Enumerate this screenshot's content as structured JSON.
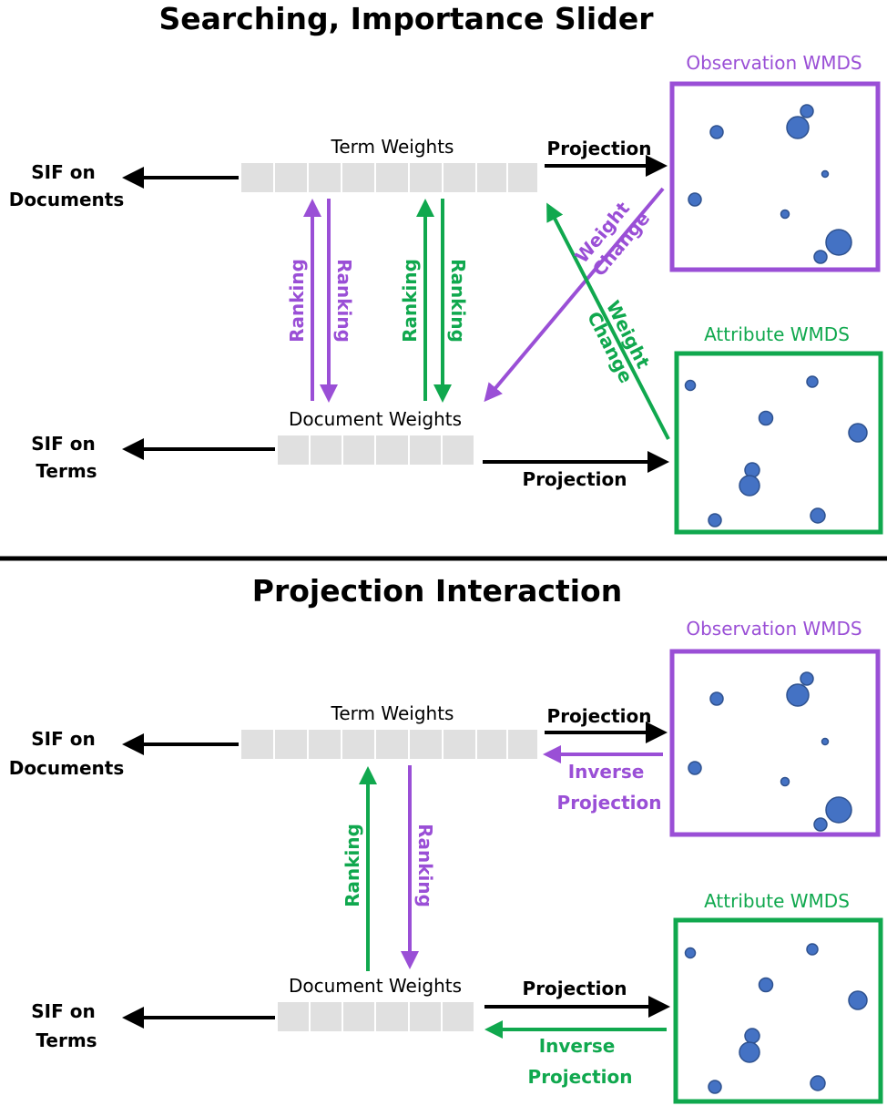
{
  "colors": {
    "purple": "#9a4fd6",
    "green": "#10a84e",
    "black": "#000000",
    "cell": "#e0e0e0",
    "dot": "#4472c4"
  },
  "top": {
    "title": "Searching, Importance Slider",
    "term_weights": "Term Weights",
    "document_weights": "Document Weights",
    "sif_documents": [
      "SIF on",
      "Documents"
    ],
    "sif_terms": [
      "SIF on",
      "Terms"
    ],
    "ranking": "Ranking",
    "projection_top": "Projection",
    "projection_bottom": "Projection",
    "weight_change_purple": [
      "Weight",
      "Change"
    ],
    "weight_change_green": [
      "Weight",
      "Change"
    ],
    "observation_wmds": "Observation WMDS",
    "attribute_wmds": "Attribute WMDS"
  },
  "bottom": {
    "title": "Projection Interaction",
    "term_weights": "Term Weights",
    "document_weights": "Document Weights",
    "sif_documents": [
      "SIF on",
      "Documents"
    ],
    "sif_terms": [
      "SIF on",
      "Terms"
    ],
    "ranking": "Ranking",
    "projection_top": "Projection",
    "inverse_projection_top": [
      "Inverse",
      "Projection"
    ],
    "projection_bottom": "Projection",
    "inverse_projection_bottom": [
      "Inverse",
      "Projection"
    ],
    "observation_wmds": "Observation WMDS",
    "attribute_wmds": "Attribute WMDS"
  }
}
